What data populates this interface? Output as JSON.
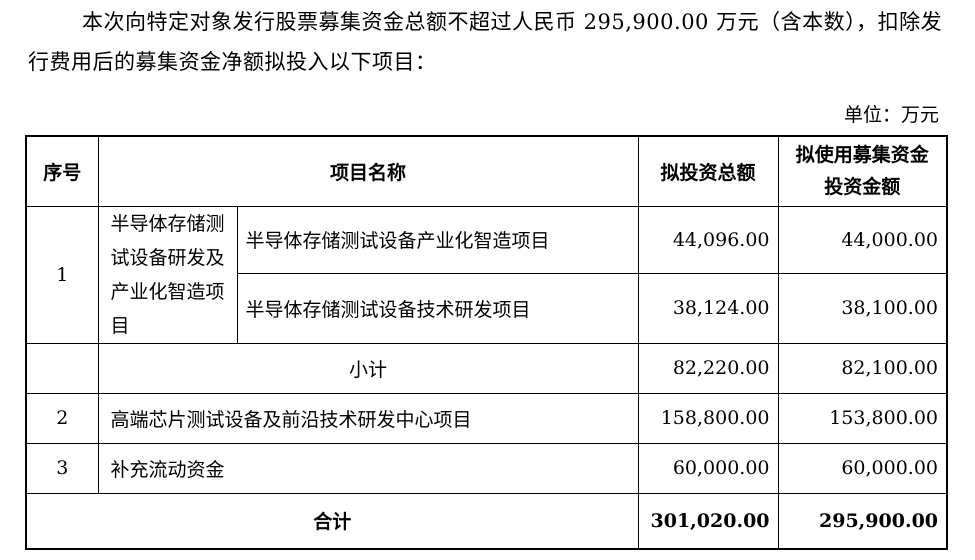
{
  "intro": "本次向特定对象发行股票募集资金总额不超过人民币 295,900.00 万元（含本数），扣除发行费用后的募集资金净额拟投入以下项目：",
  "unit": "单位：万元",
  "table": {
    "headers": [
      "序号",
      "项目名称",
      "拟投资总额",
      "拟使用募集资金投资金额"
    ],
    "group1": {
      "no": "1",
      "name": "半导体存储测试设备研发及产业化智造项目",
      "rows": [
        {
          "name": "半导体存储测试设备产业化智造项目",
          "total": "44,096.00",
          "raised": "44,000.00"
        },
        {
          "name": "半导体存储测试设备技术研发项目",
          "total": "38,124.00",
          "raised": "38,100.00"
        }
      ],
      "subtotal": {
        "label": "小计",
        "total": "82,220.00",
        "raised": "82,100.00"
      }
    },
    "rows": [
      {
        "no": "2",
        "name": "高端芯片测试设备及前沿技术研发中心项目",
        "total": "158,800.00",
        "raised": "153,800.00"
      },
      {
        "no": "3",
        "name": "补充流动资金",
        "total": "60,000.00",
        "raised": "60,000.00"
      }
    ],
    "sum": {
      "label": "合计",
      "total": "301,020.00",
      "raised": "295,900.00"
    }
  }
}
